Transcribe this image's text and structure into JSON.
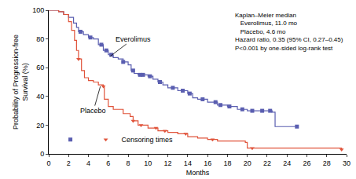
{
  "chart_data": {
    "type": "line",
    "line_style": "step",
    "x_label": "Months",
    "y_label": [
      "Probability of Progression-free",
      "Survival (%)"
    ],
    "xlim": [
      0,
      30
    ],
    "xticks": [
      0,
      2,
      4,
      6,
      8,
      10,
      12,
      14,
      16,
      18,
      20,
      22,
      24,
      26,
      28,
      30
    ],
    "ylim": [
      0,
      100
    ],
    "yticks": [
      0,
      20,
      40,
      60,
      80,
      100
    ],
    "grid": false,
    "legend": "lower left",
    "censor_label": "Censoring times",
    "series": [
      {
        "name": "Everolimus",
        "color": "#5a5eb0",
        "marker": "square",
        "x": [
          0,
          1,
          1.5,
          2,
          2.5,
          2.8,
          3,
          3.5,
          4,
          4.5,
          5,
          5.5,
          6,
          6.5,
          7,
          7.5,
          8,
          8.3,
          8.6,
          9,
          10,
          10.5,
          11,
          11.5,
          12,
          13,
          14,
          14.5,
          15,
          16,
          17,
          18,
          19,
          20,
          22.5,
          22.8,
          25
        ],
        "values": [
          100,
          99,
          97,
          95,
          91,
          88,
          85,
          83,
          81,
          80,
          76,
          72,
          69,
          67,
          66,
          64,
          62,
          58,
          56,
          55,
          54,
          52,
          50,
          48,
          46,
          44,
          42,
          39,
          38,
          36,
          34,
          33,
          31,
          30,
          29,
          19,
          19
        ],
        "censored": [
          3.2,
          4.2,
          5.3,
          5.8,
          6.3,
          7.5,
          8.5,
          9.2,
          9.5,
          10.2,
          11.2,
          12.5,
          13.5,
          14.2,
          15.5,
          16.8,
          17.3,
          18.2,
          19.5,
          20.5,
          21.5,
          22.3,
          25
        ]
      },
      {
        "name": "Placebo",
        "color": "#e0533a",
        "marker": "triangle-down",
        "x": [
          0,
          1,
          1.5,
          2,
          2.3,
          2.6,
          2.8,
          3,
          3.3,
          3.6,
          4,
          4.5,
          5,
          5.5,
          5.6,
          6,
          6.5,
          7.5,
          8.2,
          8.5,
          9,
          10,
          11,
          12,
          13,
          14,
          15,
          16,
          17,
          19.8,
          20,
          29.5
        ],
        "values": [
          100,
          99,
          97,
          92,
          86,
          79,
          72,
          66,
          58,
          53,
          51,
          50,
          48,
          47,
          38,
          33,
          31,
          28,
          26,
          23,
          20,
          18,
          16,
          15,
          14,
          12,
          11,
          10,
          9,
          8,
          4,
          3
        ],
        "censored": [
          3.0,
          5.5,
          8.5,
          9.3,
          10.8,
          11.7,
          13.8,
          16.5,
          20.5,
          29.5
        ]
      }
    ],
    "annotations": [
      {
        "text": "Everolimus",
        "x": 6.2,
        "y": 68,
        "tx": 8.5,
        "ty": 80
      },
      {
        "text": "Placebo",
        "x": 5.2,
        "y": 47,
        "tx": 4.5,
        "ty": 30
      }
    ],
    "stats_text": [
      "Kaplan–Meier median",
      "   Everolimus, 11.0 mo",
      "   Placebo, 4.6 mo",
      "Hazard ratio, 0.35 (95% CI, 0.27–0.45)",
      "P<0.001 by one-sided log-rank test"
    ]
  }
}
